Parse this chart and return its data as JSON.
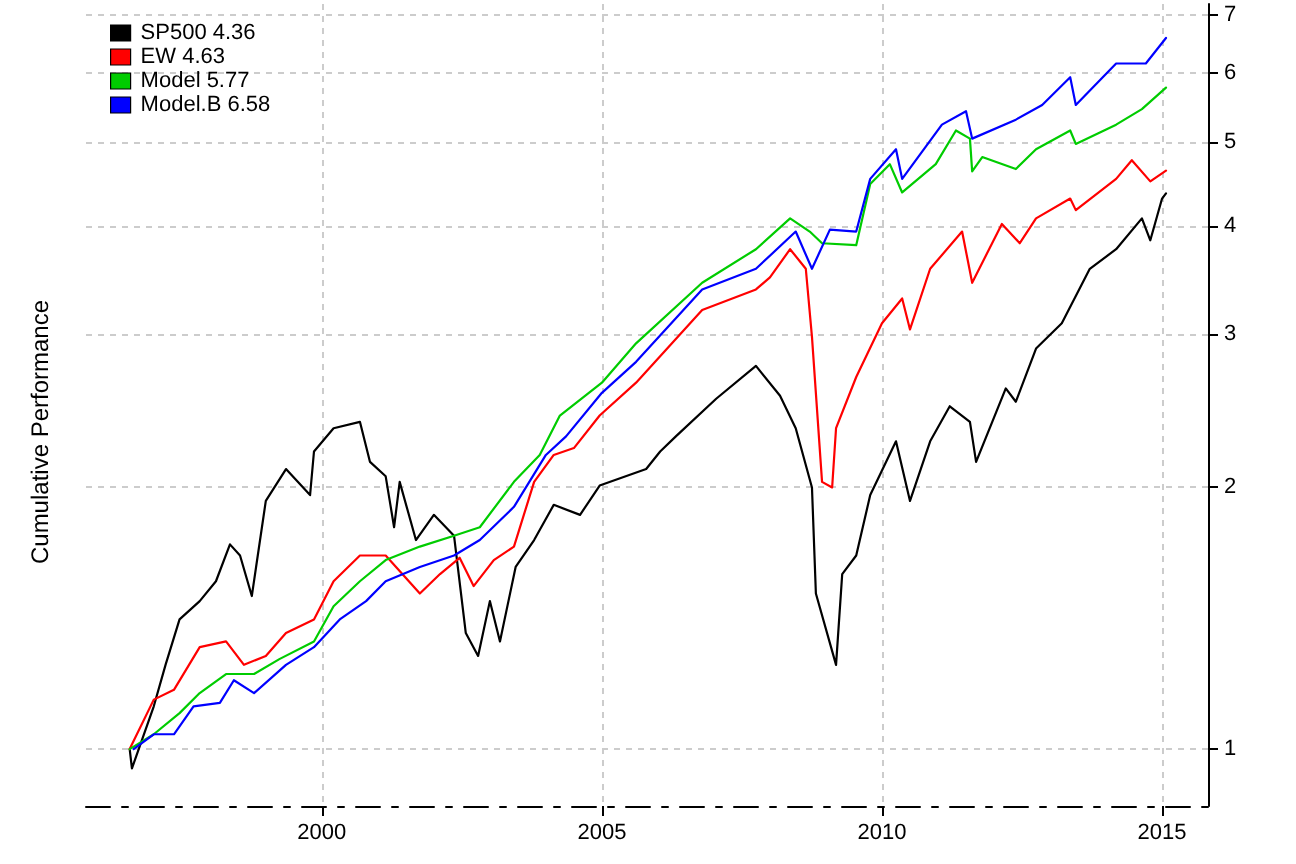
{
  "chart_data": {
    "type": "line",
    "ylabel": "Cumulative Performance",
    "log": "y",
    "grid": true,
    "legend": "top left",
    "marker": "none",
    "line_style": "solid",
    "xlim": [
      1995.79,
      2015.82
    ],
    "xticks": [
      2000,
      2005,
      2010,
      2015
    ],
    "ylim": [
      0.86,
      7.2
    ],
    "yticks": [
      1,
      2,
      3,
      4,
      5,
      6,
      7
    ],
    "series": [
      {
        "name": "SP500 4.36",
        "color": "#000000",
        "x": [
          1996.57,
          1996.61,
          1997.0,
          1997.21,
          1997.46,
          1997.82,
          1998.11,
          1998.36,
          1998.54,
          1998.75,
          1999.0,
          1999.36,
          1999.79,
          1999.86,
          2000.21,
          2000.68,
          2000.86,
          2001.14,
          2001.29,
          2001.39,
          2001.68,
          2002.0,
          2002.36,
          2002.57,
          2002.79,
          2003.0,
          2003.18,
          2003.46,
          2003.79,
          2004.14,
          2004.61,
          2004.96,
          2005.79,
          2006.04,
          2006.32,
          2007.04,
          2007.75,
          2008.18,
          2008.46,
          2008.75,
          2008.82,
          2009.18,
          2009.29,
          2009.54,
          2009.79,
          2010.25,
          2010.5,
          2010.86,
          2011.21,
          2011.57,
          2011.68,
          2012.21,
          2012.39,
          2012.75,
          2013.21,
          2013.71,
          2014.18,
          2014.64,
          2014.79,
          2015.0,
          2015.07
        ],
        "values": [
          1.0,
          0.95,
          1.12,
          1.25,
          1.41,
          1.48,
          1.56,
          1.72,
          1.67,
          1.5,
          1.93,
          2.1,
          1.96,
          2.2,
          2.34,
          2.38,
          2.14,
          2.06,
          1.8,
          2.03,
          1.74,
          1.86,
          1.76,
          1.36,
          1.28,
          1.48,
          1.33,
          1.62,
          1.74,
          1.91,
          1.86,
          2.01,
          2.1,
          2.2,
          2.29,
          2.53,
          2.76,
          2.55,
          2.34,
          2.0,
          1.51,
          1.25,
          1.59,
          1.67,
          1.96,
          2.26,
          1.93,
          2.26,
          2.48,
          2.38,
          2.14,
          2.6,
          2.51,
          2.89,
          3.09,
          3.57,
          3.76,
          4.08,
          3.85,
          4.3,
          4.36
        ]
      },
      {
        "name": "EW 4.63",
        "color": "#ff0000",
        "x": [
          1996.57,
          1997.0,
          1997.36,
          1997.82,
          1998.29,
          1998.61,
          1999.0,
          1999.36,
          1999.86,
          2000.21,
          2000.68,
          2001.14,
          2001.75,
          2002.11,
          2002.46,
          2002.71,
          2003.07,
          2003.43,
          2003.79,
          2004.14,
          2004.5,
          2004.96,
          2005.61,
          2006.79,
          2007.75,
          2008.0,
          2008.36,
          2008.64,
          2008.75,
          2008.93,
          2009.11,
          2009.18,
          2009.54,
          2010.0,
          2010.36,
          2010.5,
          2010.86,
          2011.43,
          2011.61,
          2012.14,
          2012.46,
          2012.75,
          2013.36,
          2013.46,
          2014.18,
          2014.46,
          2014.79,
          2015.07
        ],
        "values": [
          1.0,
          1.14,
          1.17,
          1.31,
          1.33,
          1.25,
          1.28,
          1.36,
          1.41,
          1.56,
          1.67,
          1.67,
          1.51,
          1.59,
          1.66,
          1.54,
          1.65,
          1.71,
          2.03,
          2.18,
          2.22,
          2.42,
          2.64,
          3.2,
          3.38,
          3.49,
          3.76,
          3.57,
          2.98,
          2.03,
          2.0,
          2.34,
          2.68,
          3.09,
          3.3,
          3.04,
          3.57,
          3.94,
          3.44,
          4.02,
          3.82,
          4.08,
          4.3,
          4.17,
          4.53,
          4.76,
          4.5,
          4.63
        ]
      },
      {
        "name": "Model 5.77",
        "color": "#00cc00",
        "x": [
          1996.57,
          1997.0,
          1997.46,
          1997.82,
          1998.29,
          1998.79,
          1999.25,
          1999.86,
          2000.21,
          2000.68,
          2001.14,
          2001.75,
          2002.36,
          2002.82,
          2003.43,
          2003.89,
          2004.25,
          2005.0,
          2005.61,
          2006.79,
          2007.75,
          2008.36,
          2008.71,
          2008.93,
          2009.54,
          2009.79,
          2010.14,
          2010.36,
          2010.96,
          2011.32,
          2011.57,
          2011.61,
          2011.79,
          2012.39,
          2012.75,
          2013.36,
          2013.46,
          2014.18,
          2014.64,
          2015.07
        ],
        "values": [
          1.0,
          1.04,
          1.1,
          1.16,
          1.22,
          1.22,
          1.27,
          1.33,
          1.46,
          1.56,
          1.65,
          1.71,
          1.76,
          1.8,
          2.03,
          2.18,
          2.42,
          2.64,
          2.93,
          3.44,
          3.76,
          4.08,
          3.94,
          3.82,
          3.8,
          4.47,
          4.71,
          4.37,
          4.71,
          5.15,
          5.04,
          4.62,
          4.8,
          4.65,
          4.9,
          5.15,
          4.97,
          5.23,
          5.45,
          5.77
        ]
      },
      {
        "name": "Model.B 6.58",
        "color": "#0000ff",
        "x": [
          1996.64,
          1997.0,
          1997.36,
          1997.71,
          1998.18,
          1998.43,
          1998.79,
          1999.36,
          1999.86,
          2000.32,
          2000.79,
          2001.14,
          2001.75,
          2002.36,
          2002.82,
          2003.43,
          2004.0,
          2004.36,
          2005.0,
          2005.61,
          2006.79,
          2007.75,
          2008.46,
          2008.75,
          2009.07,
          2009.54,
          2009.79,
          2010.25,
          2010.36,
          2011.07,
          2011.5,
          2011.61,
          2012.39,
          2012.86,
          2013.36,
          2013.46,
          2014.18,
          2014.71,
          2015.07
        ],
        "values": [
          1.0,
          1.04,
          1.04,
          1.12,
          1.13,
          1.2,
          1.16,
          1.25,
          1.31,
          1.41,
          1.48,
          1.56,
          1.62,
          1.67,
          1.74,
          1.9,
          2.18,
          2.29,
          2.57,
          2.79,
          3.38,
          3.57,
          3.94,
          3.57,
          3.96,
          3.94,
          4.53,
          4.9,
          4.53,
          5.23,
          5.42,
          5.04,
          5.3,
          5.51,
          5.93,
          5.51,
          6.15,
          6.15,
          6.58
        ]
      }
    ]
  }
}
